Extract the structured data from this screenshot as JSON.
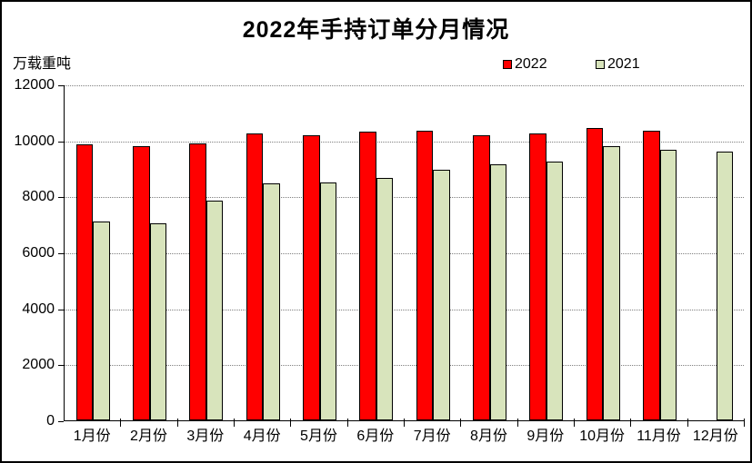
{
  "title": "2022年手持订单分月情况",
  "unit_label": "万载重吨",
  "legend": {
    "items": [
      {
        "label": "2022",
        "color": "#FF0000"
      },
      {
        "label": "2021",
        "color": "#D8E4BC"
      }
    ]
  },
  "chart_data": {
    "type": "bar",
    "title": "2022年手持订单分月情况",
    "ylabel": "万载重吨",
    "categories": [
      "1月份",
      "2月份",
      "3月份",
      "4月份",
      "5月份",
      "6月份",
      "7月份",
      "8月份",
      "9月份",
      "10月份",
      "11月份",
      "12月份"
    ],
    "series": [
      {
        "name": "2022",
        "color": "#FF0000",
        "values": [
          9850,
          9800,
          9900,
          10250,
          10200,
          10300,
          10350,
          10200,
          10250,
          10450,
          10350,
          null
        ]
      },
      {
        "name": "2021",
        "color": "#D8E4BC",
        "values": [
          7100,
          7050,
          7850,
          8450,
          8500,
          8650,
          8950,
          9150,
          9250,
          9800,
          9650,
          9600
        ]
      }
    ],
    "ylim": [
      0,
      12000
    ],
    "ytick_interval": 2000,
    "yticks": [
      "0",
      "2000",
      "4000",
      "6000",
      "8000",
      "10000",
      "12000"
    ],
    "grid": "horizontal-dotted",
    "legend_position": "top-right",
    "axis_color": "#000000",
    "gridline_color": "#7F7F7F"
  }
}
